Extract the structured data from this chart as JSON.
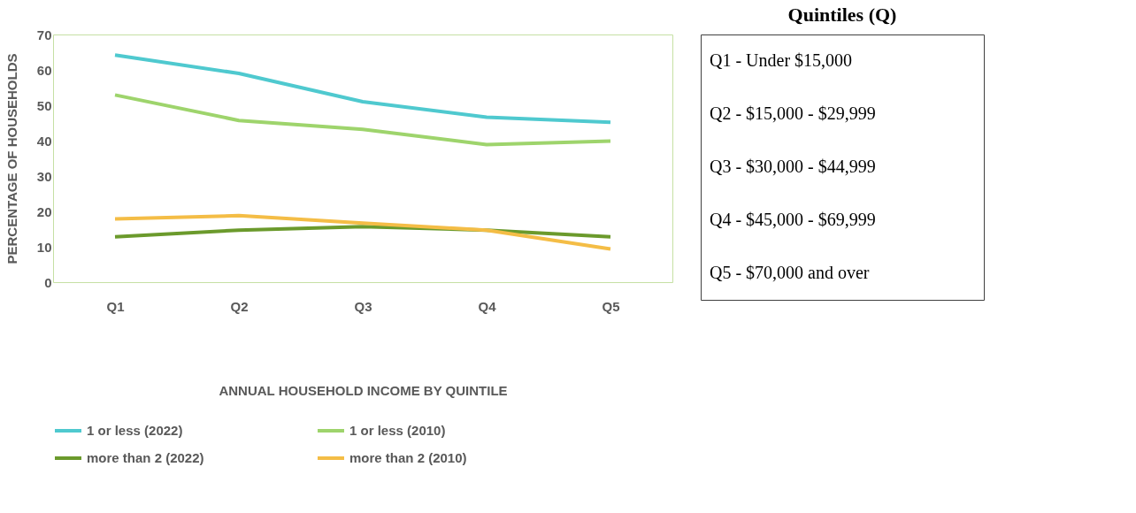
{
  "chart_data": [
    {
      "type": "line",
      "xlabel": "ANNUAL HOUSEHOLD  INCOME BY QUINTILE",
      "ylabel": "PERCENTAGE OF HOUSEHOLDS",
      "categories": [
        "Q1",
        "Q2",
        "Q3",
        "Q4",
        "Q5"
      ],
      "ylim": [
        0,
        70
      ],
      "yticks": [
        0,
        10,
        20,
        30,
        40,
        50,
        60,
        70
      ],
      "grid": false,
      "legend": "bottom",
      "marker": "none",
      "line_style": "solid",
      "series": [
        {
          "name": "1 or less (2022)",
          "color": "#4fc9cf",
          "values": [
            64.2,
            59,
            51,
            46.6,
            45.2
          ]
        },
        {
          "name": "1 or less (2010)",
          "color": "#9ed46c",
          "values": [
            52.9,
            45.7,
            43.2,
            38.9,
            39.9
          ]
        },
        {
          "name": "more than 2 (2022)",
          "color": "#6b9a2c",
          "values": [
            12.8,
            14.7,
            15.7,
            14.7,
            12.8
          ]
        },
        {
          "name": "more than 2 (2010)",
          "color": "#f4bd46",
          "values": [
            17.9,
            18.8,
            16.7,
            14.7,
            9.4
          ]
        }
      ]
    },
    {
      "type": "other",
      "title": "Quintiles (Q)",
      "annotations": [
        "Q1 - Under $15,000",
        "Q2 - $15,000 - $29,999",
        "Q3 - $30,000 - $44,999",
        "Q4 - $45,000 - $69,999",
        "Q5 - $70,000 and over"
      ]
    }
  ]
}
